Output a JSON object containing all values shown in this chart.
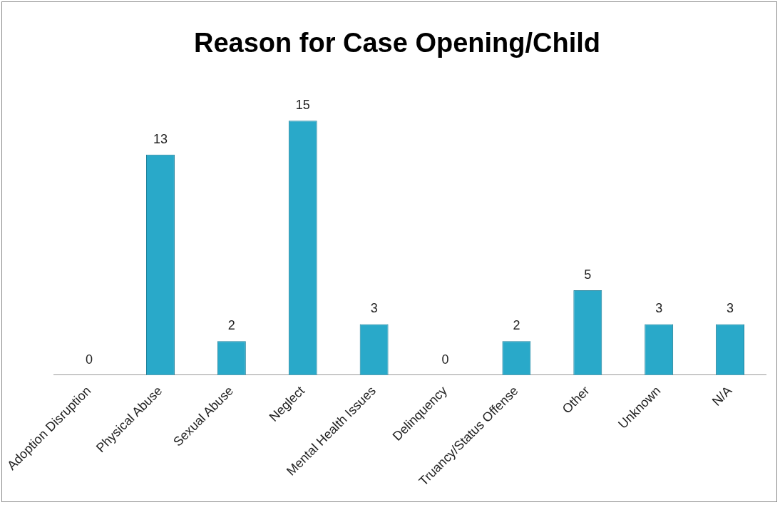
{
  "chart_data": {
    "type": "bar",
    "title": "Reason for Case Opening/Child",
    "categories": [
      "Adoption Disruption",
      "Physical Abuse",
      "Sexual Abuse",
      "Neglect",
      "Mental Health Issues",
      "Delinquency",
      "Truancy/Status Offense",
      "Other",
      "Unknown",
      "N/A"
    ],
    "values": [
      0,
      13,
      2,
      15,
      3,
      0,
      2,
      5,
      3,
      3
    ],
    "color": "#29a9c9",
    "data_labels": true,
    "grid": false,
    "legend": false
  }
}
